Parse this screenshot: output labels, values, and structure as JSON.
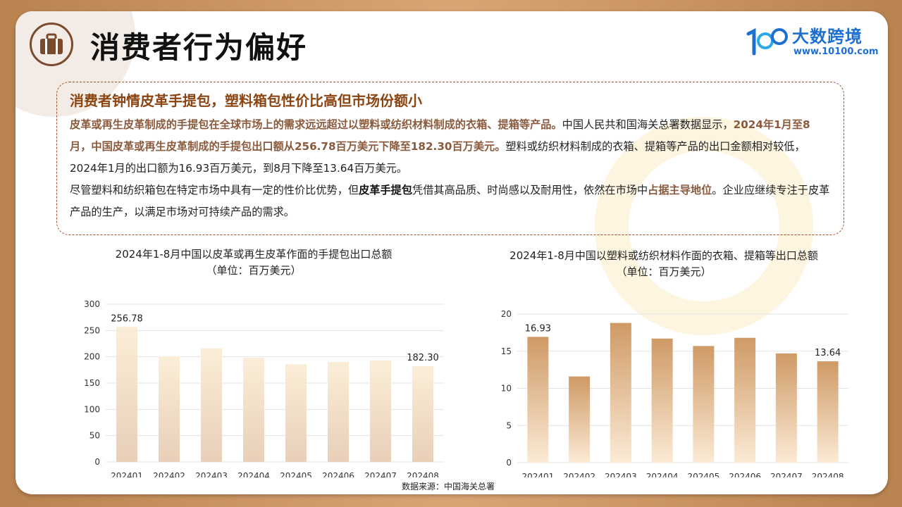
{
  "header": {
    "title": "消费者行为偏好",
    "icon": "briefcase-icon",
    "logo_name": "大数跨境",
    "logo_url": "www.10100.com"
  },
  "summary": {
    "heading": "消费者钟情皮革手提包，塑料箱包性价比高但市场份额小",
    "p1_a": "皮革或再生皮革制成的手提包在全球市场上的需求远远超过以塑料或纺织材料制成的衣箱、提箱等产品。",
    "p1_b": "中国人民共和国海关总署数据显示，",
    "p1_c": "2024年1月至8月，中国皮革或再生皮革制成的手提包出口额从256.78百万美元下降至182.30百万美元。",
    "p1_d": "塑料或纺织材料制成的衣箱、提箱等产品的出口金额相对较低，2024年1月的出口额为16.93百万美元，到8月下降至13.64百万美元。",
    "p2_a": "尽管塑料和纺织箱包在特定市场中具有一定的性价比优势，但",
    "p2_b": "皮革手提包",
    "p2_c": "凭借其高品质、时尚感以及耐用性，依然在市场中",
    "p2_d": "占据主导地位",
    "p2_e": "。企业应继续专注于皮革产品的生产，以满足市场对可持续产品的需求。"
  },
  "source": "数据来源：中国海关总署",
  "colors": {
    "accent": "#8b4513",
    "highlight": "#8b5a3c",
    "bar_light_top": "#fbecd3",
    "bar_dark_top": "#c9935f"
  },
  "chart_data": [
    {
      "type": "bar",
      "title": "2024年1-8月中国以皮革或再生皮革作面的手提包出口总额",
      "subtitle": "（单位：百万美元）",
      "categories": [
        "202401",
        "202402",
        "202403",
        "202404",
        "202405",
        "202406",
        "202407",
        "202408"
      ],
      "values": [
        256.78,
        201,
        216,
        198,
        186,
        190,
        193,
        182.3
      ],
      "labels": {
        "0": "256.78",
        "7": "182.30"
      },
      "ylim": [
        0,
        300
      ],
      "yticks": [
        0,
        50,
        100,
        150,
        200,
        250,
        300
      ],
      "grid": true
    },
    {
      "type": "bar",
      "title": "2024年1-8月中国以塑料或纺织材料作面的衣箱、提箱等出口总额",
      "subtitle": "（单位：百万美元）",
      "categories": [
        "202401",
        "202402",
        "202403",
        "202404",
        "202405",
        "202406",
        "202407",
        "202408"
      ],
      "values": [
        16.93,
        11.6,
        18.8,
        16.7,
        15.7,
        16.8,
        14.7,
        13.64
      ],
      "labels": {
        "0": "16.93",
        "7": "13.64"
      },
      "ylim": [
        0,
        20
      ],
      "yticks": [
        0,
        5,
        10,
        15,
        20
      ],
      "grid": true
    }
  ]
}
